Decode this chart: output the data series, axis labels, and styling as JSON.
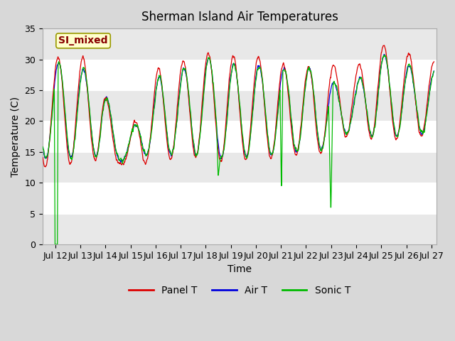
{
  "title": "Sherman Island Air Temperatures",
  "xlabel": "Time",
  "ylabel": "Temperature (C)",
  "ylim": [
    0,
    35
  ],
  "xlim_days": [
    11.5,
    27.2
  ],
  "tick_days": [
    12,
    13,
    14,
    15,
    16,
    17,
    18,
    19,
    20,
    21,
    22,
    23,
    24,
    25,
    26,
    27
  ],
  "tick_labels": [
    "Jul 12",
    "Jul 13",
    "Jul 14",
    "Jul 15",
    "Jul 16",
    "Jul 17",
    "Jul 18",
    "Jul 19",
    "Jul 20",
    "Jul 21",
    "Jul 22",
    "Jul 23",
    "Jul 24",
    "Jul 25",
    "Jul 26",
    "Jul 27"
  ],
  "yticks": [
    0,
    5,
    10,
    15,
    20,
    25,
    30,
    35
  ],
  "bg_color": "#d8d8d8",
  "plot_bg_color": "#ffffff",
  "stripe_color": "#e8e8e8",
  "grid_color": "#dddddd",
  "panel_color": "#dd0000",
  "air_color": "#0000dd",
  "sonic_color": "#00bb00",
  "legend_label_box": "SI_mixed",
  "legend_box_color": "#ffffcc",
  "legend_box_edge": "#999900",
  "legend_text_color": "#880000",
  "font_size": 9,
  "title_font_size": 12
}
